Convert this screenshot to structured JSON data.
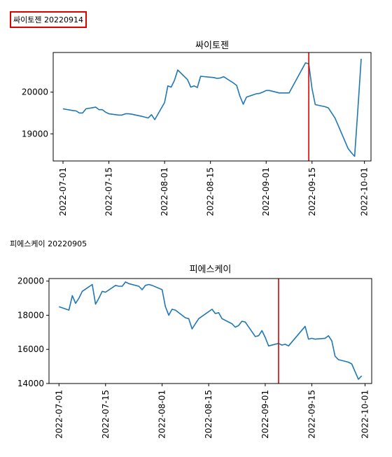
{
  "captions": [
    "싸이토젠 20220914",
    "피에스케이 20220905"
  ],
  "colors": {
    "line": "#1f77b4",
    "marker": "#e00000"
  },
  "chart_data": [
    {
      "type": "line",
      "title": "싸이토젠",
      "xlim": [
        "2022-06-28",
        "2022-10-03"
      ],
      "ylim": [
        18350,
        20950
      ],
      "xticks": [
        "2022-07-01",
        "2022-07-15",
        "2022-08-01",
        "2022-08-15",
        "2022-09-01",
        "2022-09-15",
        "2022-10-01"
      ],
      "yticks": [
        19000,
        20000
      ],
      "vline": "2022-09-14",
      "x": [
        "2022-07-01",
        "2022-07-04",
        "2022-07-05",
        "2022-07-06",
        "2022-07-07",
        "2022-07-08",
        "2022-07-11",
        "2022-07-12",
        "2022-07-13",
        "2022-07-14",
        "2022-07-15",
        "2022-07-18",
        "2022-07-19",
        "2022-07-20",
        "2022-07-21",
        "2022-07-22",
        "2022-07-25",
        "2022-07-26",
        "2022-07-27",
        "2022-07-28",
        "2022-07-29",
        "2022-08-01",
        "2022-08-02",
        "2022-08-03",
        "2022-08-04",
        "2022-08-05",
        "2022-08-08",
        "2022-08-09",
        "2022-08-10",
        "2022-08-11",
        "2022-08-12",
        "2022-08-16",
        "2022-08-17",
        "2022-08-18",
        "2022-08-19",
        "2022-08-22",
        "2022-08-23",
        "2022-08-24",
        "2022-08-25",
        "2022-08-26",
        "2022-08-29",
        "2022-08-30",
        "2022-08-31",
        "2022-09-01",
        "2022-09-02",
        "2022-09-05",
        "2022-09-06",
        "2022-09-07",
        "2022-09-08",
        "2022-09-13",
        "2022-09-14",
        "2022-09-15",
        "2022-09-16",
        "2022-09-19",
        "2022-09-20",
        "2022-09-21",
        "2022-09-22",
        "2022-09-23",
        "2022-09-26",
        "2022-09-27",
        "2022-09-28",
        "2022-09-29",
        "2022-09-30"
      ],
      "y": [
        19600,
        19560,
        19550,
        19500,
        19500,
        19600,
        19640,
        19580,
        19580,
        19520,
        19480,
        19450,
        19450,
        19480,
        19480,
        19470,
        19420,
        19400,
        19380,
        19460,
        19340,
        19750,
        20150,
        20120,
        20280,
        20530,
        20300,
        20120,
        20150,
        20110,
        20380,
        20350,
        20330,
        20340,
        20370,
        20220,
        20160,
        19900,
        19710,
        19880,
        19960,
        19970,
        20000,
        20040,
        20040,
        19980,
        19980,
        19980,
        19980,
        20700,
        20680,
        20080,
        19700,
        19650,
        19620,
        19500,
        19380,
        19200,
        18650,
        18550,
        18460,
        19600,
        20800
      ]
    },
    {
      "type": "line",
      "title": "피에스케이",
      "xlim": [
        "2022-06-28",
        "2022-10-03"
      ],
      "ylim": [
        14000,
        20150
      ],
      "xticks": [
        "2022-07-01",
        "2022-07-15",
        "2022-08-01",
        "2022-08-15",
        "2022-09-01",
        "2022-09-15",
        "2022-10-01"
      ],
      "yticks": [
        14000,
        16000,
        18000,
        20000
      ],
      "vline": "2022-09-05",
      "x": [
        "2022-07-01",
        "2022-07-04",
        "2022-07-05",
        "2022-07-06",
        "2022-07-07",
        "2022-07-08",
        "2022-07-11",
        "2022-07-12",
        "2022-07-13",
        "2022-07-14",
        "2022-07-15",
        "2022-07-18",
        "2022-07-19",
        "2022-07-20",
        "2022-07-21",
        "2022-07-22",
        "2022-07-25",
        "2022-07-26",
        "2022-07-27",
        "2022-07-28",
        "2022-07-29",
        "2022-08-01",
        "2022-08-02",
        "2022-08-03",
        "2022-08-04",
        "2022-08-05",
        "2022-08-08",
        "2022-08-09",
        "2022-08-10",
        "2022-08-11",
        "2022-08-12",
        "2022-08-16",
        "2022-08-17",
        "2022-08-18",
        "2022-08-19",
        "2022-08-22",
        "2022-08-23",
        "2022-08-24",
        "2022-08-25",
        "2022-08-26",
        "2022-08-29",
        "2022-08-30",
        "2022-08-31",
        "2022-09-01",
        "2022-09-02",
        "2022-09-05",
        "2022-09-06",
        "2022-09-07",
        "2022-09-08",
        "2022-09-13",
        "2022-09-14",
        "2022-09-15",
        "2022-09-16",
        "2022-09-19",
        "2022-09-20",
        "2022-09-21",
        "2022-09-22",
        "2022-09-23",
        "2022-09-26",
        "2022-09-27",
        "2022-09-28",
        "2022-09-29",
        "2022-09-30"
      ],
      "y": [
        18500,
        18300,
        19150,
        18700,
        19000,
        19400,
        19800,
        18650,
        19000,
        19400,
        19350,
        19750,
        19700,
        19700,
        19950,
        19850,
        19700,
        19500,
        19750,
        19800,
        19750,
        19500,
        18500,
        18000,
        18350,
        18300,
        17850,
        17800,
        17200,
        17500,
        17800,
        18350,
        18100,
        18150,
        17800,
        17500,
        17300,
        17400,
        17650,
        17600,
        16750,
        16800,
        17100,
        16700,
        16200,
        16350,
        16250,
        16300,
        16200,
        17350,
        16600,
        16650,
        16600,
        16650,
        16800,
        16500,
        15600,
        15400,
        15250,
        15150,
        14700,
        14250,
        14450
      ]
    }
  ]
}
